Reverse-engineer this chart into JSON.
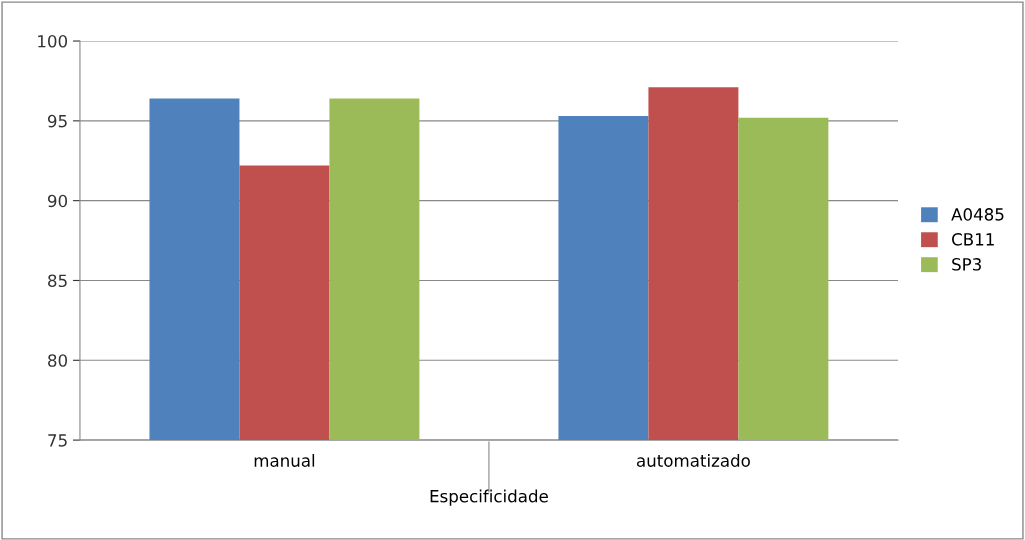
{
  "chart_data": {
    "type": "bar",
    "xlabel": "Especificidade",
    "categories": [
      "manual",
      "automatizado"
    ],
    "series": [
      {
        "name": "A0485",
        "color": "#4f81bd",
        "values": [
          96.4,
          95.3
        ]
      },
      {
        "name": "CB11",
        "color": "#c0504d",
        "values": [
          92.2,
          97.1
        ]
      },
      {
        "name": "SP3",
        "color": "#9bbb59",
        "values": [
          96.4,
          95.2
        ]
      }
    ],
    "ylim": [
      75,
      100
    ],
    "yticks": [
      75,
      80,
      85,
      90,
      95,
      100
    ],
    "grid": "y",
    "legend": "right"
  }
}
